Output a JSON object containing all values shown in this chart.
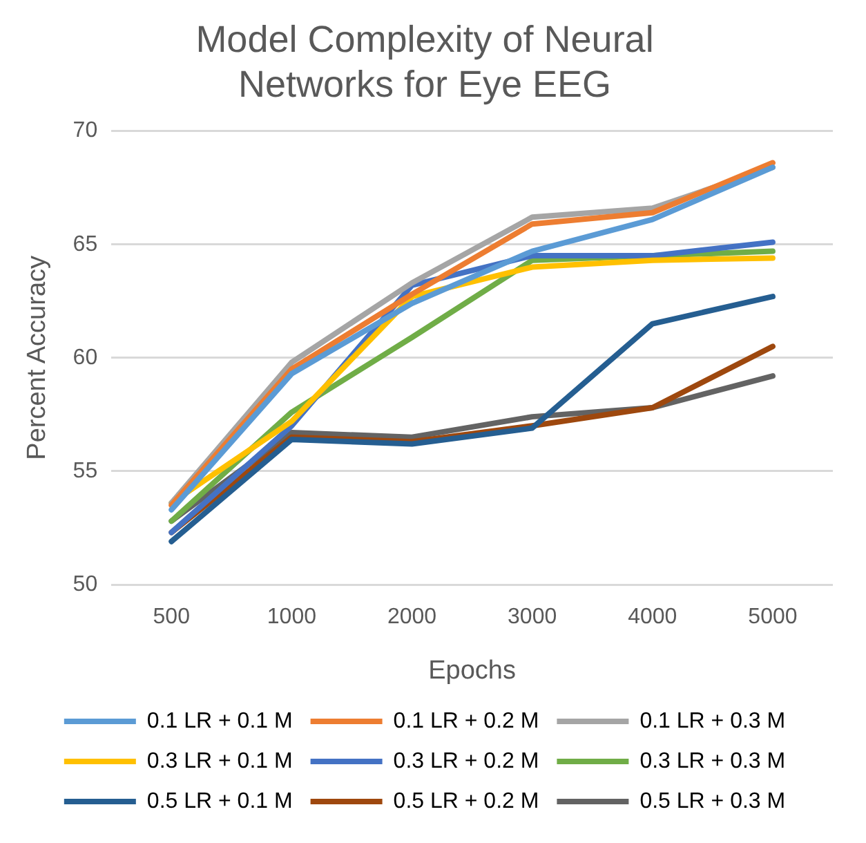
{
  "chart_data": {
    "type": "line",
    "title": "Model Complexity of Neural Networks for Eye EEG",
    "xlabel": "Epochs",
    "ylabel": "Percent Accuracy",
    "categories": [
      "500",
      "1000",
      "2000",
      "3000",
      "4000",
      "5000"
    ],
    "series": [
      {
        "name": "0.1 LR + 0.1 M",
        "color": "#5b9bd5",
        "values": [
          53.3,
          59.3,
          62.4,
          64.7,
          66.1,
          68.4
        ]
      },
      {
        "name": "0.1 LR + 0.2 M",
        "color": "#ed7d31",
        "values": [
          53.5,
          59.5,
          62.8,
          65.9,
          66.4,
          68.6
        ]
      },
      {
        "name": "0.1 LR + 0.3 M",
        "color": "#a5a5a5",
        "values": [
          53.6,
          59.8,
          63.3,
          66.2,
          66.6,
          68.4
        ]
      },
      {
        "name": "0.3 LR + 0.1 M",
        "color": "#ffc000",
        "values": [
          53.6,
          57.2,
          62.7,
          64.0,
          64.3,
          64.4
        ]
      },
      {
        "name": "0.3 LR + 0.2 M",
        "color": "#4472c4",
        "values": [
          52.3,
          57.0,
          63.2,
          64.5,
          64.5,
          65.1
        ]
      },
      {
        "name": "0.3 LR + 0.3 M",
        "color": "#70ad47",
        "values": [
          52.8,
          57.6,
          60.9,
          64.3,
          64.5,
          64.7
        ]
      },
      {
        "name": "0.5 LR + 0.1 M",
        "color": "#255e91",
        "values": [
          51.9,
          56.4,
          56.2,
          56.9,
          61.5,
          62.7
        ]
      },
      {
        "name": "0.5 LR + 0.2 M",
        "color": "#9e480e",
        "values": [
          52.3,
          56.5,
          56.3,
          57.0,
          57.8,
          60.5
        ]
      },
      {
        "name": "0.5 LR + 0.3 M",
        "color": "#636363",
        "values": [
          52.8,
          56.7,
          56.5,
          57.4,
          57.8,
          59.2
        ]
      }
    ],
    "ylim": [
      50,
      70
    ],
    "yticks": [
      50,
      55,
      60,
      65,
      70
    ],
    "grid": "y",
    "legend": "bottom",
    "marker": "none",
    "line_style": "solid"
  }
}
